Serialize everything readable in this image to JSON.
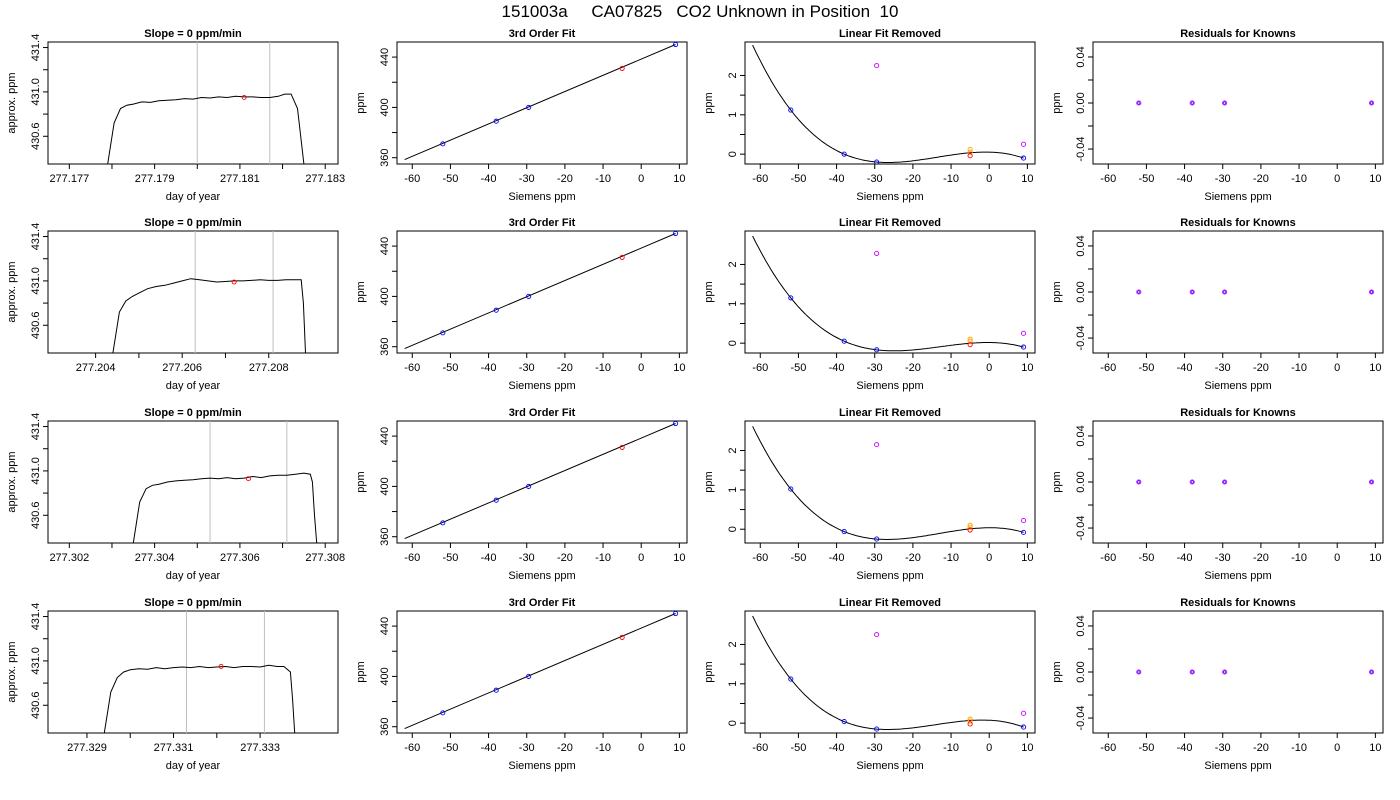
{
  "title": "151003a     CA07825   CO2 Unknown in Position  10",
  "panel_titles": {
    "timeseries": "Slope =  0  ppm/min",
    "fit": "3rd Order Fit",
    "linear_removed": "Linear Fit Removed",
    "residuals": "Residuals for Knowns"
  },
  "colors": {
    "standard": "#0000ff",
    "unknown": "#ff0000",
    "outlier": "#cc00ff",
    "orange": "#ffa500",
    "guide": "#bebebe",
    "line": "#000000"
  },
  "chart_data": [
    {
      "type": "line",
      "row": 0,
      "title": "Slope =  0  ppm/min",
      "xlabel": "day of year",
      "ylabel": "approx. ppm",
      "xlim": [
        277.1765,
        277.1833
      ],
      "ylim": [
        430.35,
        431.45
      ],
      "xticks": [
        277.177,
        277.179,
        277.181,
        277.183
      ],
      "yticks": [
        430.6,
        431.0,
        431.4
      ],
      "vlines": [
        277.18,
        277.1817
      ],
      "x": [
        277.1779,
        277.17805,
        277.1782,
        277.17835,
        277.1785,
        277.1787,
        277.1789,
        277.1791,
        277.1793,
        277.1795,
        277.1797,
        277.1799,
        277.1801,
        277.1803,
        277.1805,
        277.1807,
        277.1809,
        277.1811,
        277.1813,
        277.1815,
        277.1817,
        277.1819,
        277.18205,
        277.1822,
        277.18235,
        277.1825
      ],
      "y": [
        430.35,
        430.72,
        430.85,
        430.88,
        430.89,
        430.91,
        430.905,
        430.92,
        430.925,
        430.93,
        430.94,
        430.935,
        430.95,
        430.945,
        430.955,
        430.95,
        430.96,
        430.955,
        430.955,
        430.95,
        430.95,
        430.96,
        430.98,
        430.98,
        430.85,
        430.35
      ],
      "marker": {
        "x": 277.1811,
        "y": 430.95
      }
    },
    {
      "type": "scatter",
      "row": 0,
      "title": "3rd Order Fit",
      "xlabel": "Siemens ppm",
      "ylabel": "ppm",
      "xlim": [
        -64,
        12
      ],
      "ylim": [
        355,
        452
      ],
      "xticks": [
        -60,
        -50,
        -40,
        -30,
        -20,
        -10,
        0,
        10
      ],
      "yticks": [
        360,
        400,
        440
      ],
      "curve": {
        "x": [
          -62,
          9
        ],
        "y": [
          358.5,
          450
        ]
      },
      "standards": {
        "x": [
          -52.0,
          -38.0,
          -29.5,
          9.0
        ],
        "y": [
          371.0,
          389.0,
          400.0,
          450.0
        ]
      },
      "unknown": {
        "x": [
          -5.0
        ],
        "y": [
          431.0
        ]
      }
    },
    {
      "type": "scatter",
      "row": 0,
      "title": "Linear Fit Removed",
      "xlabel": "Siemens ppm",
      "ylabel": "ppm",
      "xlim": [
        -64,
        12
      ],
      "ylim": [
        -0.25,
        2.85
      ],
      "xticks": [
        -60,
        -50,
        -40,
        -30,
        -20,
        -10,
        0,
        10
      ],
      "yticks": [
        0.0,
        1.0,
        2.0
      ],
      "curve_x": [
        -62,
        -52,
        -38,
        -29.5,
        9
      ],
      "curve_y": [
        2.75,
        1.12,
        0.0,
        -0.2,
        -0.1
      ],
      "standards": {
        "x": [
          -52.0,
          -38.0,
          -29.5,
          9.0
        ],
        "y": [
          1.12,
          0.0,
          -0.2,
          -0.1
        ]
      },
      "unknown": {
        "x": [
          -5.0
        ],
        "y": [
          -0.04
        ]
      },
      "orange": {
        "x": [
          -5.0,
          -5.0
        ],
        "y": [
          0.05,
          0.12
        ]
      },
      "outliers": {
        "x": [
          -29.5,
          9.0
        ],
        "y": [
          2.25,
          0.25
        ]
      }
    },
    {
      "type": "scatter",
      "row": 0,
      "title": "Residuals for Knowns",
      "xlabel": "Siemens ppm",
      "ylabel": "ppm",
      "xlim": [
        -64,
        12
      ],
      "ylim": [
        -0.053,
        0.053
      ],
      "xticks": [
        -60,
        -50,
        -40,
        -30,
        -20,
        -10,
        0,
        10
      ],
      "yticks": [
        -0.04,
        0.0,
        0.04
      ],
      "standards": {
        "x": [
          -52.0,
          -38.0,
          -29.5,
          9.0
        ],
        "y": [
          0,
          0,
          0,
          0
        ]
      }
    },
    {
      "type": "line",
      "row": 1,
      "title": "Slope =  0  ppm/min",
      "xlabel": "day of year",
      "ylabel": "approx. ppm",
      "xlim": [
        277.2029,
        277.2096
      ],
      "ylim": [
        430.35,
        431.45
      ],
      "xticks": [
        277.204,
        277.206,
        277.208
      ],
      "yticks": [
        430.6,
        431.0,
        431.4
      ],
      "vlines": [
        277.2063,
        277.2081
      ],
      "x": [
        277.2044,
        277.20455,
        277.2047,
        277.20485,
        277.205,
        277.2052,
        277.2054,
        277.2056,
        277.2058,
        277.206,
        277.2062,
        277.2064,
        277.2066,
        277.2068,
        277.207,
        277.2072,
        277.2074,
        277.2076,
        277.2078,
        277.208,
        277.2082,
        277.2084,
        277.2086,
        277.20875,
        277.2088,
        277.20885
      ],
      "y": [
        430.35,
        430.72,
        430.82,
        430.86,
        430.89,
        430.93,
        430.95,
        430.96,
        430.98,
        431.0,
        431.02,
        431.01,
        431.0,
        430.99,
        430.995,
        431.0,
        431.0,
        431.005,
        431.01,
        431.005,
        431.005,
        431.01,
        431.01,
        431.01,
        430.8,
        430.35
      ],
      "marker": {
        "x": 277.2072,
        "y": 430.99
      }
    },
    {
      "type": "scatter",
      "row": 1,
      "title": "3rd Order Fit",
      "xlabel": "Siemens ppm",
      "ylabel": "ppm",
      "xlim": [
        -64,
        12
      ],
      "ylim": [
        355,
        452
      ],
      "xticks": [
        -60,
        -50,
        -40,
        -30,
        -20,
        -10,
        0,
        10
      ],
      "yticks": [
        360,
        400,
        440
      ],
      "curve": {
        "x": [
          -62,
          9
        ],
        "y": [
          358.5,
          450
        ]
      },
      "standards": {
        "x": [
          -52.0,
          -38.0,
          -29.5,
          9.0
        ],
        "y": [
          371.0,
          389.0,
          400.0,
          450.0
        ]
      },
      "unknown": {
        "x": [
          -5.0
        ],
        "y": [
          431.0
        ]
      }
    },
    {
      "type": "scatter",
      "row": 1,
      "title": "Linear Fit Removed",
      "xlabel": "Siemens ppm",
      "ylabel": "ppm",
      "xlim": [
        -64,
        12
      ],
      "ylim": [
        -0.25,
        2.85
      ],
      "xticks": [
        -60,
        -50,
        -40,
        -30,
        -20,
        -10,
        0,
        10
      ],
      "yticks": [
        0.0,
        1.0,
        2.0
      ],
      "curve_x": [
        -62,
        -52,
        -38,
        -29.5,
        9
      ],
      "curve_y": [
        2.75,
        1.15,
        0.05,
        -0.17,
        -0.1
      ],
      "standards": {
        "x": [
          -52.0,
          -38.0,
          -29.5,
          9.0
        ],
        "y": [
          1.15,
          0.05,
          -0.17,
          -0.1
        ]
      },
      "unknown": {
        "x": [
          -5.0
        ],
        "y": [
          -0.04
        ]
      },
      "orange": {
        "x": [
          -5.0,
          -5.0
        ],
        "y": [
          0.05,
          0.1
        ]
      },
      "outliers": {
        "x": [
          -29.5,
          9.0
        ],
        "y": [
          2.28,
          0.25
        ]
      }
    },
    {
      "type": "scatter",
      "row": 1,
      "title": "Residuals for Knowns",
      "xlabel": "Siemens ppm",
      "ylabel": "ppm",
      "xlim": [
        -64,
        12
      ],
      "ylim": [
        -0.053,
        0.053
      ],
      "xticks": [
        -60,
        -50,
        -40,
        -30,
        -20,
        -10,
        0,
        10
      ],
      "yticks": [
        -0.04,
        0.0,
        0.04
      ],
      "standards": {
        "x": [
          -52.0,
          -38.0,
          -29.5,
          9.0
        ],
        "y": [
          0,
          0,
          0,
          0
        ]
      }
    },
    {
      "type": "line",
      "row": 2,
      "title": "Slope =  0  ppm/min",
      "xlabel": "day of year",
      "ylabel": "approx. ppm",
      "xlim": [
        277.3015,
        277.3083
      ],
      "ylim": [
        430.35,
        431.45
      ],
      "xticks": [
        277.302,
        277.304,
        277.306,
        277.308
      ],
      "yticks": [
        430.6,
        431.0,
        431.4
      ],
      "vlines": [
        277.3053,
        277.3071
      ],
      "x": [
        277.3035,
        277.30365,
        277.3038,
        277.30395,
        277.3041,
        277.3043,
        277.3045,
        277.3047,
        277.3049,
        277.3051,
        277.3053,
        277.3055,
        277.3057,
        277.3059,
        277.3061,
        277.3063,
        277.3065,
        277.3067,
        277.3069,
        277.3071,
        277.3073,
        277.3075,
        277.30765,
        277.3077,
        277.30775,
        277.3078
      ],
      "y": [
        430.35,
        430.72,
        430.84,
        430.87,
        430.88,
        430.9,
        430.91,
        430.915,
        430.92,
        430.93,
        430.935,
        430.93,
        430.94,
        430.93,
        430.935,
        430.95,
        430.94,
        430.955,
        430.96,
        430.96,
        430.97,
        430.98,
        430.97,
        430.9,
        430.6,
        430.35
      ],
      "marker": {
        "x": 277.3062,
        "y": 430.93
      }
    },
    {
      "type": "scatter",
      "row": 2,
      "title": "3rd Order Fit",
      "xlabel": "Siemens ppm",
      "ylabel": "ppm",
      "xlim": [
        -64,
        12
      ],
      "ylim": [
        355,
        452
      ],
      "xticks": [
        -60,
        -50,
        -40,
        -30,
        -20,
        -10,
        0,
        10
      ],
      "yticks": [
        360,
        400,
        440
      ],
      "curve": {
        "x": [
          -62,
          9
        ],
        "y": [
          358.5,
          450
        ]
      },
      "standards": {
        "x": [
          -52.0,
          -38.0,
          -29.5,
          9.0
        ],
        "y": [
          371.0,
          389.0,
          400.0,
          450.0
        ]
      },
      "unknown": {
        "x": [
          -5.0
        ],
        "y": [
          431.0
        ]
      }
    },
    {
      "type": "scatter",
      "row": 2,
      "title": "Linear Fit Removed",
      "xlabel": "Siemens ppm",
      "ylabel": "ppm",
      "xlim": [
        -64,
        12
      ],
      "ylim": [
        -0.35,
        2.75
      ],
      "xticks": [
        -60,
        -50,
        -40,
        -30,
        -20,
        -10,
        0,
        10
      ],
      "yticks": [
        0.0,
        1.0,
        2.0
      ],
      "curve_x": [
        -62,
        -52,
        -38,
        -29.5,
        9
      ],
      "curve_y": [
        2.6,
        1.02,
        -0.06,
        -0.25,
        -0.08
      ],
      "standards": {
        "x": [
          -52.0,
          -38.0,
          -29.5,
          9.0
        ],
        "y": [
          1.02,
          -0.06,
          -0.25,
          -0.08
        ]
      },
      "unknown": {
        "x": [
          -5.0
        ],
        "y": [
          -0.02
        ]
      },
      "orange": {
        "x": [
          -5.0,
          -5.0
        ],
        "y": [
          0.05,
          0.1
        ]
      },
      "outliers": {
        "x": [
          -29.5,
          9.0
        ],
        "y": [
          2.15,
          0.22
        ]
      }
    },
    {
      "type": "scatter",
      "row": 2,
      "title": "Residuals for Knowns",
      "xlabel": "Siemens ppm",
      "ylabel": "ppm",
      "xlim": [
        -64,
        12
      ],
      "ylim": [
        -0.053,
        0.053
      ],
      "xticks": [
        -60,
        -50,
        -40,
        -30,
        -20,
        -10,
        0,
        10
      ],
      "yticks": [
        -0.04,
        0.0,
        0.04
      ],
      "standards": {
        "x": [
          -52.0,
          -38.0,
          -29.5,
          9.0
        ],
        "y": [
          0,
          0,
          0,
          0
        ]
      }
    },
    {
      "type": "line",
      "row": 3,
      "title": "Slope =  0  ppm/min",
      "xlabel": "day of year",
      "ylabel": "approx. ppm",
      "xlim": [
        277.3281,
        277.3348
      ],
      "ylim": [
        430.35,
        431.45
      ],
      "xticks": [
        277.329,
        277.331,
        277.333
      ],
      "yticks": [
        430.6,
        431.0,
        431.4
      ],
      "vlines": [
        277.3313,
        277.3331
      ],
      "x": [
        277.3294,
        277.32955,
        277.3297,
        277.32985,
        277.33,
        277.3302,
        277.3304,
        277.3306,
        277.3308,
        277.331,
        277.3312,
        277.3314,
        277.3316,
        277.3318,
        277.332,
        277.3322,
        277.3324,
        277.3326,
        277.3328,
        277.333,
        277.3332,
        277.3334,
        277.33355,
        277.3337,
        277.33375,
        277.3338
      ],
      "y": [
        430.35,
        430.72,
        430.85,
        430.9,
        430.92,
        430.93,
        430.925,
        430.94,
        430.93,
        430.94,
        430.945,
        430.94,
        430.95,
        430.94,
        430.945,
        430.95,
        430.94,
        430.95,
        430.95,
        430.945,
        430.96,
        430.95,
        430.95,
        430.9,
        430.65,
        430.35
      ],
      "marker": {
        "x": 277.3321,
        "y": 430.95
      }
    },
    {
      "type": "scatter",
      "row": 3,
      "title": "3rd Order Fit",
      "xlabel": "Siemens ppm",
      "ylabel": "ppm",
      "xlim": [
        -64,
        12
      ],
      "ylim": [
        355,
        452
      ],
      "xticks": [
        -60,
        -50,
        -40,
        -30,
        -20,
        -10,
        0,
        10
      ],
      "yticks": [
        360,
        400,
        440
      ],
      "curve": {
        "x": [
          -62,
          9
        ],
        "y": [
          358.5,
          450
        ]
      },
      "standards": {
        "x": [
          -52.0,
          -38.0,
          -29.5,
          9.0
        ],
        "y": [
          371.0,
          389.0,
          400.0,
          450.0
        ]
      },
      "unknown": {
        "x": [
          -5.0
        ],
        "y": [
          431.0
        ]
      }
    },
    {
      "type": "scatter",
      "row": 3,
      "title": "Linear Fit Removed",
      "xlabel": "Siemens ppm",
      "ylabel": "ppm",
      "xlim": [
        -64,
        12
      ],
      "ylim": [
        -0.25,
        2.85
      ],
      "xticks": [
        -60,
        -50,
        -40,
        -30,
        -20,
        -10,
        0,
        10
      ],
      "yticks": [
        0.0,
        1.0,
        2.0
      ],
      "curve_x": [
        -62,
        -52,
        -38,
        -29.5,
        9
      ],
      "curve_y": [
        2.75,
        1.12,
        0.04,
        -0.15,
        -0.1
      ],
      "standards": {
        "x": [
          -52.0,
          -38.0,
          -29.5,
          9.0
        ],
        "y": [
          1.12,
          0.04,
          -0.15,
          -0.1
        ]
      },
      "unknown": {
        "x": [
          -5.0
        ],
        "y": [
          -0.02
        ]
      },
      "orange": {
        "x": [
          -5.0,
          -5.0
        ],
        "y": [
          0.05,
          0.1
        ]
      },
      "outliers": {
        "x": [
          -29.5,
          9.0
        ],
        "y": [
          2.25,
          0.25
        ]
      }
    },
    {
      "type": "scatter",
      "row": 3,
      "title": "Residuals for Knowns",
      "xlabel": "Siemens ppm",
      "ylabel": "ppm",
      "xlim": [
        -64,
        12
      ],
      "ylim": [
        -0.053,
        0.053
      ],
      "xticks": [
        -60,
        -50,
        -40,
        -30,
        -20,
        -10,
        0,
        10
      ],
      "yticks": [
        -0.04,
        0.0,
        0.04
      ],
      "standards": {
        "x": [
          -52.0,
          -38.0,
          -29.5,
          9.0
        ],
        "y": [
          0,
          0,
          0,
          0
        ]
      }
    }
  ]
}
